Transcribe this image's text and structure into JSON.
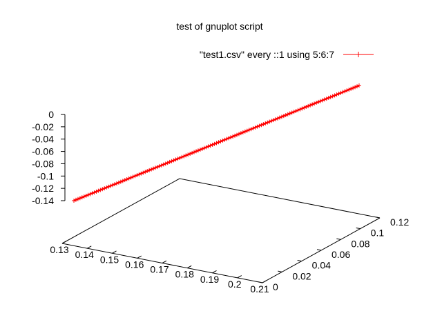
{
  "colors": {
    "series": "#ff0000",
    "axis": "#000000",
    "background": "#ffffff"
  },
  "chart_data": {
    "type": "line",
    "projection": "3d",
    "title": "test of gnuplot script",
    "xlabel": "",
    "ylabel": "",
    "zlabel": "",
    "xlim": [
      0.13,
      0.21
    ],
    "ylim": [
      0,
      0.12
    ],
    "zlim": [
      -0.14,
      0
    ],
    "x_ticks": [
      "0.13",
      "0.14",
      "0.15",
      "0.16",
      "0.17",
      "0.18",
      "0.19",
      "0.2",
      "0.21"
    ],
    "y_ticks": [
      "0",
      "0.02",
      "0.04",
      "0.06",
      "0.08",
      "0.1",
      "0.12"
    ],
    "z_ticks": [
      "0",
      "-0.02",
      "-0.04",
      "-0.06",
      "-0.08",
      "-0.1",
      "-0.12",
      "-0.14"
    ],
    "grid": false,
    "legend_position": "top-right",
    "series": [
      {
        "name": "\"test1.csv\" every ::1 using 5:6:7",
        "color": "#ff0000",
        "marker": "plus",
        "x": [
          0.13,
          0.133,
          0.136,
          0.139,
          0.142,
          0.145,
          0.148,
          0.151,
          0.154,
          0.157,
          0.16,
          0.163,
          0.166,
          0.169,
          0.172,
          0.175,
          0.178,
          0.181,
          0.184,
          0.187,
          0.19,
          0.193,
          0.196,
          0.199,
          0.202,
          0.205,
          0.208,
          0.21
        ],
        "y": [
          0.0,
          0.0045,
          0.009,
          0.0135,
          0.018,
          0.0225,
          0.027,
          0.0315,
          0.036,
          0.0405,
          0.045,
          0.0495,
          0.054,
          0.0585,
          0.063,
          0.0675,
          0.072,
          0.0765,
          0.081,
          0.0855,
          0.09,
          0.0945,
          0.099,
          0.1035,
          0.108,
          0.1125,
          0.117,
          0.12
        ],
        "z": [
          -0.14,
          -0.135,
          -0.13,
          -0.125,
          -0.12,
          -0.115,
          -0.11,
          -0.105,
          -0.1,
          -0.095,
          -0.09,
          -0.085,
          -0.08,
          -0.075,
          -0.07,
          -0.065,
          -0.06,
          -0.055,
          -0.05,
          -0.045,
          -0.04,
          -0.035,
          -0.03,
          -0.025,
          -0.02,
          -0.015,
          -0.01,
          -0.007
        ]
      }
    ]
  }
}
